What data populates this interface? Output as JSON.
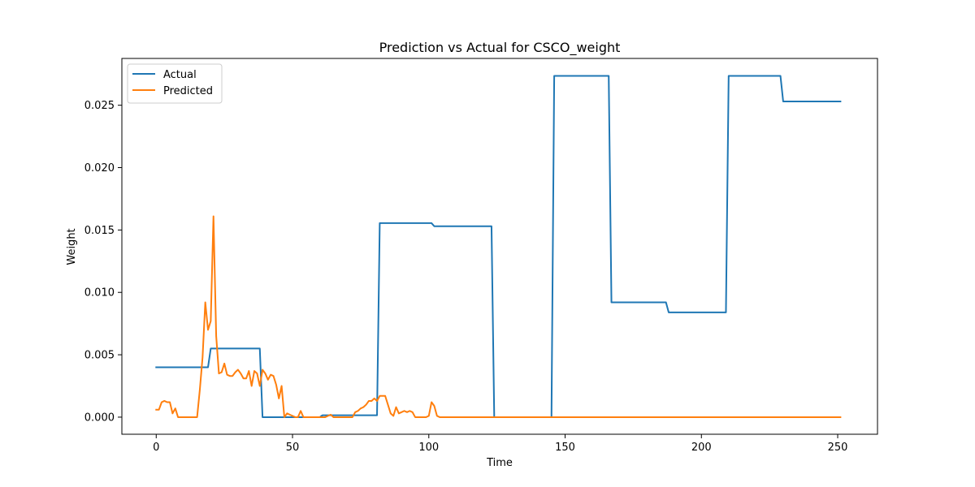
{
  "chart_data": {
    "type": "line",
    "title": "Prediction vs Actual for CSCO_weight",
    "xlabel": "Time",
    "ylabel": "Weight",
    "xlim": [
      -12.6,
      264.6
    ],
    "ylim": [
      -0.00137,
      0.02875
    ],
    "xticks": [
      0,
      50,
      100,
      150,
      200,
      250
    ],
    "yticks": [
      0.0,
      0.005,
      0.01,
      0.015,
      0.02,
      0.025
    ],
    "ytick_labels": [
      "0.000",
      "0.005",
      "0.010",
      "0.015",
      "0.020",
      "0.025"
    ],
    "grid": false,
    "legend_position": "upper-left",
    "series": [
      {
        "name": "Actual",
        "color": "#1f77b4",
        "x": [
          0,
          19,
          20,
          38,
          39,
          60,
          61,
          81,
          82,
          101,
          102,
          123,
          124,
          145,
          146,
          166,
          167,
          187,
          188,
          209,
          210,
          229,
          230,
          251
        ],
        "y": [
          0.004,
          0.004,
          0.0055,
          0.0055,
          0.0,
          0.0,
          0.00015,
          0.00015,
          0.01555,
          0.01555,
          0.0153,
          0.0153,
          0.0,
          0.0,
          0.02735,
          0.02735,
          0.0092,
          0.0092,
          0.0084,
          0.0084,
          0.02735,
          0.02735,
          0.0253,
          0.0253
        ]
      },
      {
        "name": "Predicted",
        "color": "#ff7f0e",
        "x": [
          0,
          1,
          2,
          3,
          4,
          5,
          6,
          7,
          8,
          9,
          10,
          11,
          12,
          13,
          14,
          15,
          16,
          17,
          18,
          19,
          20,
          21,
          22,
          23,
          24,
          25,
          26,
          27,
          28,
          29,
          30,
          31,
          32,
          33,
          34,
          35,
          36,
          37,
          38,
          39,
          40,
          41,
          42,
          43,
          44,
          45,
          46,
          47,
          48,
          49,
          50,
          51,
          52,
          53,
          54,
          55,
          56,
          57,
          58,
          59,
          60,
          61,
          62,
          63,
          64,
          65,
          66,
          67,
          68,
          69,
          70,
          71,
          72,
          73,
          74,
          75,
          76,
          77,
          78,
          79,
          80,
          81,
          82,
          83,
          84,
          85,
          86,
          87,
          88,
          89,
          90,
          91,
          92,
          93,
          94,
          95,
          96,
          97,
          98,
          99,
          100,
          101,
          102,
          103,
          104,
          105,
          251
        ],
        "y": [
          0.0006,
          0.0006,
          0.0012,
          0.0013,
          0.0012,
          0.0012,
          0.0003,
          0.0007,
          0.0,
          0.0,
          0.0,
          0.0,
          0.0,
          0.0,
          0.0,
          0.0,
          0.0022,
          0.0048,
          0.0092,
          0.007,
          0.0077,
          0.0161,
          0.0065,
          0.0035,
          0.0036,
          0.0043,
          0.0034,
          0.0033,
          0.0033,
          0.0036,
          0.0038,
          0.0035,
          0.0031,
          0.0031,
          0.0037,
          0.0025,
          0.0037,
          0.0035,
          0.0025,
          0.0038,
          0.0035,
          0.003,
          0.0034,
          0.0033,
          0.0026,
          0.0015,
          0.0025,
          0.0,
          0.0003,
          0.0002,
          0.0001,
          0.0,
          0.0,
          0.0005,
          0.0,
          0.0,
          0.0,
          0.0,
          0.0,
          0.0,
          0.0,
          0.0,
          0.0,
          0.0001,
          0.0002,
          0.0,
          0.0,
          0.0,
          0.0,
          0.0,
          0.0,
          0.0,
          0.0,
          0.0004,
          0.0005,
          0.0007,
          0.0008,
          0.001,
          0.0013,
          0.0013,
          0.0015,
          0.0013,
          0.0017,
          0.0017,
          0.0017,
          0.001,
          0.0003,
          0.0001,
          0.0008,
          0.0003,
          0.0004,
          0.0005,
          0.0004,
          0.0005,
          0.0004,
          0.0,
          0.0,
          0.0,
          0.0,
          0.0,
          0.0001,
          0.0012,
          0.0009,
          0.0001,
          0.0,
          0.0,
          0.0
        ]
      }
    ]
  }
}
